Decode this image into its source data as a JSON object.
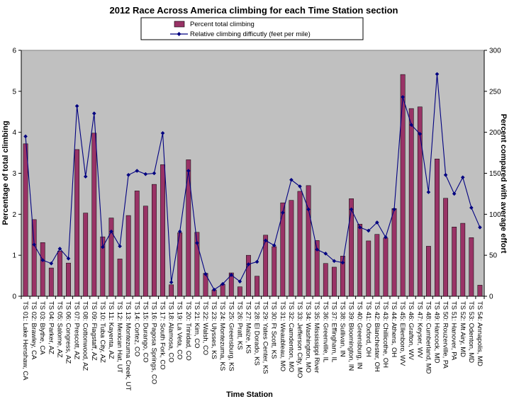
{
  "chart_data": {
    "type": "bar+line",
    "title": "2012 Race Across America climbing for each Time Station section",
    "xlabel": "Time Station",
    "ylabel": "Percentage of total climbing",
    "y2label": "Percent compared with average effort",
    "ylim": [
      0,
      6
    ],
    "yticks": [
      0,
      1,
      2,
      3,
      4,
      5,
      6
    ],
    "y2lim": [
      0,
      300
    ],
    "y2ticks": [
      0,
      50,
      100,
      150,
      200,
      250,
      300
    ],
    "grid": false,
    "legend_position": "top",
    "colors": {
      "bar": "#993366",
      "line": "#000080",
      "plot_bg": "#c0c0c0"
    },
    "categories": [
      "TS 01: Lake Henshaw, CA",
      "TS 02: Brawley, CA",
      "TS 03: Blythe, CA",
      "TS 04: Parker, AZ",
      "TS 05: Salome, AZ",
      "TS 06: Congress, AZ",
      "TS 07: Prescott, AZ",
      "TS 08: Cottonwood, AZ",
      "TS 09: Flagstaff, AZ",
      "TS 10: Tuba City, AZ",
      "TS 11: Kayenta, AZ",
      "TS 12: Mexican Hat, UT",
      "TS 13: Montezuma Creek, UT",
      "TS 14: Cortez, CO",
      "TS 15: Durango, CO",
      "TS 16: Pagosa Springs, CO",
      "TS 17: South Fork, CO",
      "TS 18: Alamosa, CO",
      "TS 19: La Veta, CO",
      "TS 20: Trinidad, CO",
      "TS 21: Kim, CO",
      "TS 22: Walsh, CO",
      "TS 23: Ulysses, KS",
      "TS 24: Montezuma, KS",
      "TS 25: Greensburg, KS",
      "TS 26: Pratt, KS",
      "TS 27: Maize, KS",
      "TS 28: El Dorado, KS",
      "TS 29: Yates Center, KS",
      "TS 30: Ft Scott, KS",
      "TS 31: Weaubleau, MO",
      "TS 32: Camdenton, MO",
      "TS 33: Jefferson City, MO",
      "TS 34: Washington, MO",
      "TS 35: Mississippi River",
      "TS 36: Greenville, IL",
      "TS 37: Effingham, IL",
      "TS 38: Sullivan, IN",
      "TS 39: Bloomington, IN",
      "TS 40: Greensburg, IN",
      "TS 41: Oxford, OH",
      "TS 42: Blanchester, OH",
      "TS 43: Chillicothe, OH",
      "TS 44: Athens, OH",
      "TS 45: Ellenboro, WV",
      "TS 46: Grafton, WV",
      "TS 47: Keyser, WV",
      "TS 48: Cumberland, MD",
      "TS 49: Hancock, MD",
      "TS 50: Rouzerville, PA",
      "TS 51: Hanover, PA",
      "TS 52: Mt Airy, MD",
      "TS 53: Odenton, MD",
      "TS 54: Annapolis, MD"
    ],
    "series": [
      {
        "name": "Percent total climbing",
        "kind": "bar",
        "axis": "left",
        "values": [
          3.72,
          1.87,
          1.31,
          0.69,
          1.1,
          0.81,
          3.58,
          2.03,
          3.98,
          1.45,
          1.91,
          0.91,
          1.97,
          2.57,
          2.2,
          2.73,
          3.21,
          0.28,
          1.55,
          3.33,
          1.56,
          0.56,
          0.15,
          0.29,
          0.57,
          0.23,
          1.0,
          0.49,
          1.49,
          1.21,
          2.28,
          2.34,
          2.56,
          2.7,
          1.36,
          0.8,
          0.71,
          0.98,
          2.38,
          1.76,
          1.35,
          1.51,
          1.42,
          2.14,
          5.41,
          4.58,
          4.62,
          1.22,
          3.35,
          2.39,
          1.69,
          1.78,
          1.43,
          0.27
        ]
      },
      {
        "name": "Relative climbing difficutly (feet per mile)",
        "kind": "line",
        "axis": "right",
        "values": [
          195,
          63,
          44,
          40,
          58,
          46,
          232,
          146,
          223,
          60,
          79,
          61,
          148,
          153,
          149,
          150,
          199,
          17,
          79,
          153,
          65,
          27,
          8,
          15,
          26,
          18,
          39,
          42,
          68,
          62,
          102,
          142,
          134,
          106,
          57,
          52,
          43,
          41,
          106,
          84,
          80,
          90,
          72,
          106,
          243,
          209,
          198,
          127,
          271,
          148,
          125,
          145,
          108,
          84
        ]
      }
    ]
  }
}
